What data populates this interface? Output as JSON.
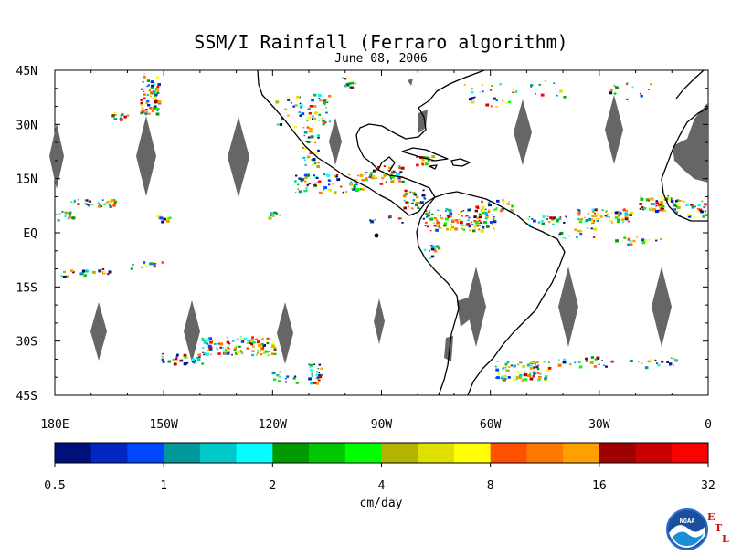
{
  "title": "SSM/I Rainfall (Ferraro algorithm)",
  "subtitle": "June 08, 2006",
  "map": {
    "lat_labels": [
      "45N",
      "30N",
      "15N",
      "EQ",
      "15S",
      "30S",
      "45S"
    ],
    "lon_labels": [
      "180E",
      "150W",
      "120W",
      "90W",
      "60W",
      "30W",
      "0"
    ],
    "lat_range": [
      -45,
      45
    ],
    "lon_range": [
      -180,
      0
    ],
    "no_data_color": "#666666",
    "land_outline_color": "#000000"
  },
  "colorbar": {
    "unit_label": "cm/day",
    "tick_labels": [
      "0.5",
      "1",
      "2",
      "4",
      "8",
      "16",
      "32"
    ],
    "colors": [
      "#00107a",
      "#0028c0",
      "#0048ff",
      "#00989a",
      "#00c8c8",
      "#00ffff",
      "#009a00",
      "#00c800",
      "#00ff00",
      "#b4b400",
      "#e0e000",
      "#ffff00",
      "#ff5000",
      "#ff7800",
      "#ffa000",
      "#a00000",
      "#c80000",
      "#ff0000"
    ]
  },
  "logo": {
    "text": "NOAA",
    "name": "noaa-logo"
  },
  "etl_letters": [
    "E",
    "T",
    "L"
  ]
}
